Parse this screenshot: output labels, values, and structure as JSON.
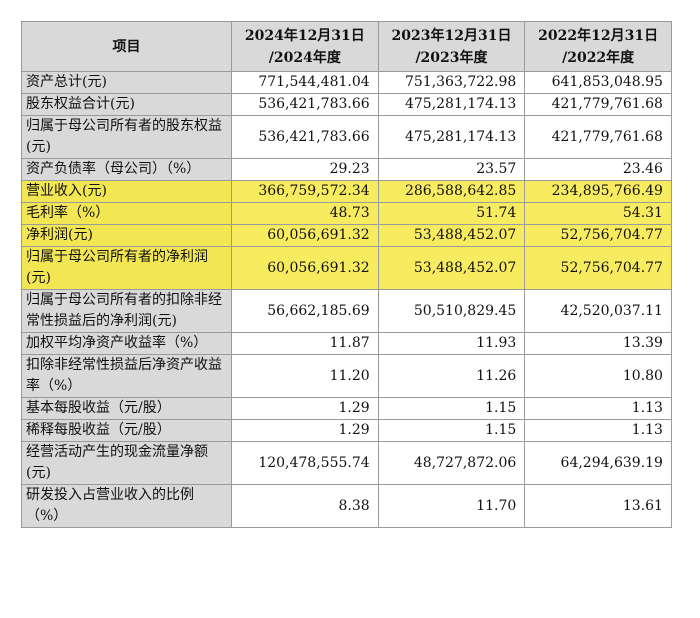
{
  "header": {
    "item": "项目",
    "col1": "2024年12月31日/2024年度",
    "col1_line1": "2024年12月31日",
    "col1_line2": "/2024年度",
    "col2_line1": "2023年12月31日",
    "col2_line2": "/2023年度",
    "col3_line1": "2022年12月31日",
    "col3_line2": "/2022年度"
  },
  "rows": [
    {
      "label": "资产总计(元)",
      "v2024": "771,544,481.04",
      "v2023": "751,363,722.98",
      "v2022": "641,853,048.95"
    },
    {
      "label": "股东权益合计(元)",
      "v2024": "536,421,783.66",
      "v2023": "475,281,174.13",
      "v2022": "421,779,761.68"
    },
    {
      "label": "归属于母公司所有者的股东权益(元)",
      "v2024": "536,421,783.66",
      "v2023": "475,281,174.13",
      "v2022": "421,779,761.68"
    },
    {
      "label": "资产负债率（母公司）（%）",
      "v2024": "29.23",
      "v2023": "23.57",
      "v2022": "23.46"
    },
    {
      "label": "营业收入(元)",
      "v2024": "366,759,572.34",
      "v2023": "286,588,642.85",
      "v2022": "234,895,766.49"
    },
    {
      "label": "毛利率（%）",
      "v2024": "48.73",
      "v2023": "51.74",
      "v2022": "54.31"
    },
    {
      "label": "净利润(元)",
      "v2024": "60,056,691.32",
      "v2023": "53,488,452.07",
      "v2022": "52,756,704.77"
    },
    {
      "label": "归属于母公司所有者的净利润(元)",
      "v2024": "60,056,691.32",
      "v2023": "53,488,452.07",
      "v2022": "52,756,704.77"
    },
    {
      "label": "归属于母公司所有者的扣除非经常性损益后的净利润(元)",
      "v2024": "56,662,185.69",
      "v2023": "50,510,829.45",
      "v2022": "42,520,037.11"
    },
    {
      "label": "加权平均净资产收益率（%）",
      "v2024": "11.87",
      "v2023": "11.93",
      "v2022": "13.39"
    },
    {
      "label": "扣除非经常性损益后净资产收益率（%）",
      "v2024": "11.20",
      "v2023": "11.26",
      "v2022": "10.80"
    },
    {
      "label": "基本每股收益（元/股）",
      "v2024": "1.29",
      "v2023": "1.15",
      "v2022": "1.13"
    },
    {
      "label": "稀释每股收益（元/股）",
      "v2024": "1.29",
      "v2023": "1.15",
      "v2022": "1.13"
    },
    {
      "label": "经营活动产生的现金流量净额(元)",
      "v2024": "120,478,555.74",
      "v2023": "48,727,872.06",
      "v2022": "64,294,639.19"
    },
    {
      "label": "研发投入占营业收入的比例（%）",
      "v2024": "8.38",
      "v2023": "11.70",
      "v2022": "13.61"
    }
  ],
  "highlight_color": "#f7eb5f"
}
